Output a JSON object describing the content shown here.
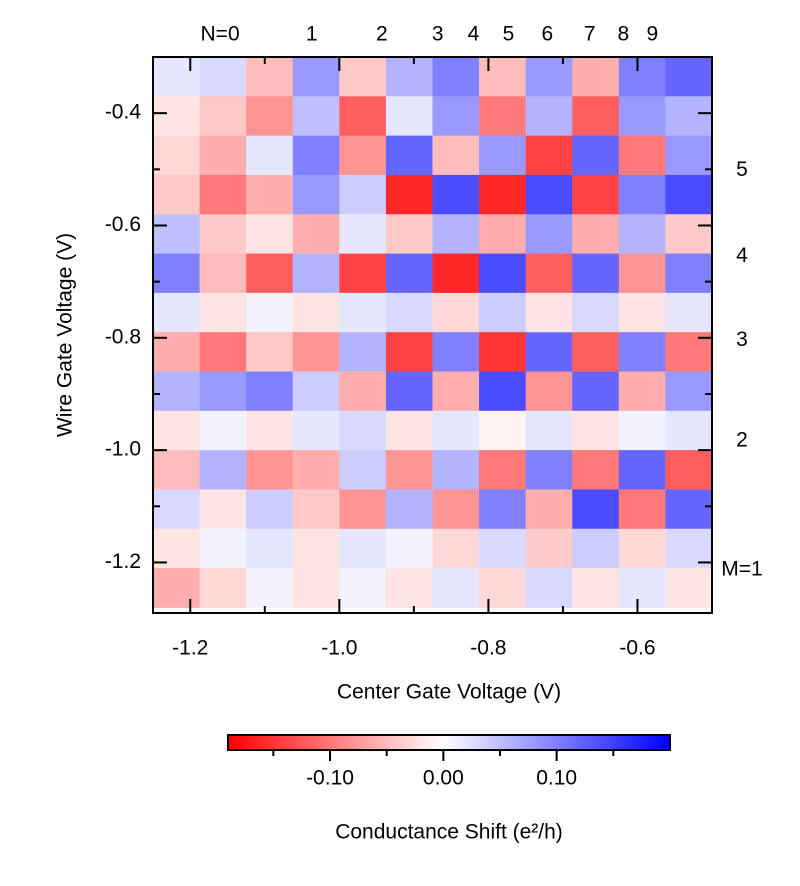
{
  "chart_data": {
    "type": "heatmap",
    "xlabel": "Center Gate Voltage (V)",
    "ylabel": "Wire Gate Voltage (V)",
    "colorbar_label": "Conductance Shift (e²/h)",
    "xlim": [
      -1.25,
      -0.5
    ],
    "ylim": [
      -1.29,
      -0.3
    ],
    "xticks": [
      -1.2,
      {
        "value": -1.0,
        "label": "-1.0"
      },
      -0.8,
      -0.6
    ],
    "xminorticks": [
      -1.1,
      -0.9,
      -0.7
    ],
    "yticks": [
      -0.4,
      -0.6,
      -0.8,
      {
        "value": -1.0,
        "label": "-1.0"
      },
      -1.2
    ],
    "yminorticks": [
      -0.5,
      -0.7,
      -0.9,
      -1.1
    ],
    "clim": [
      -0.19,
      0.2
    ],
    "cticks": [
      {
        "value": -0.1,
        "label": "-0.10"
      },
      {
        "value": 0,
        "label": "0.00"
      },
      {
        "value": 0.1,
        "label": "0.10"
      }
    ],
    "cminorticks": [
      -0.15,
      -0.05,
      0.05,
      0.15
    ],
    "colormap": [
      "#ff0000",
      "#ffffff",
      "#0000ff"
    ],
    "top_annotations": [
      {
        "label": "N=0",
        "x": -1.16
      },
      {
        "label": "1",
        "x": -1.037
      },
      {
        "label": "2",
        "x": -0.943
      },
      {
        "label": "3",
        "x": -0.868
      },
      {
        "label": "4",
        "x": -0.82
      },
      {
        "label": "5",
        "x": -0.773
      },
      {
        "label": "6",
        "x": -0.721
      },
      {
        "label": "7",
        "x": -0.664
      },
      {
        "label": "8",
        "x": -0.619
      },
      {
        "label": "9",
        "x": -0.58
      }
    ],
    "right_annotations": [
      {
        "label": "5",
        "y": -0.502
      },
      {
        "label": "4",
        "y": -0.655
      },
      {
        "label": "3",
        "y": -0.805
      },
      {
        "label": "2",
        "y": -0.984
      },
      {
        "label": "M=1",
        "y": -1.213
      }
    ],
    "x_edges": [
      -1.25,
      -1.1875,
      -1.125,
      -1.0625,
      -1.0,
      -0.9375,
      -0.875,
      -0.8125,
      -0.75,
      -0.6875,
      -0.625,
      -0.5625,
      -0.5
    ],
    "y_edges": [
      -0.3,
      -0.37,
      -0.44,
      -0.51,
      -0.58,
      -0.65,
      -0.72,
      -0.79,
      -0.86,
      -0.93,
      -1.0,
      -1.07,
      -1.14,
      -1.21,
      -1.28
    ],
    "z": [
      [
        0.02,
        0.03,
        -0.05,
        0.08,
        -0.04,
        0.06,
        0.1,
        -0.05,
        0.08,
        -0.06,
        0.1,
        0.12
      ],
      [
        -0.02,
        -0.04,
        -0.08,
        0.05,
        -0.12,
        0.02,
        0.08,
        -0.1,
        0.06,
        -0.12,
        0.08,
        0.06
      ],
      [
        -0.03,
        -0.06,
        0.02,
        0.1,
        -0.08,
        0.12,
        -0.05,
        0.08,
        -0.14,
        0.12,
        -0.1,
        0.08
      ],
      [
        -0.04,
        -0.1,
        -0.06,
        0.08,
        0.04,
        -0.16,
        0.14,
        -0.16,
        0.14,
        -0.14,
        0.1,
        0.14
      ],
      [
        0.05,
        -0.04,
        -0.02,
        -0.06,
        0.02,
        -0.04,
        0.06,
        -0.06,
        0.08,
        -0.06,
        0.06,
        -0.04
      ],
      [
        0.1,
        -0.05,
        -0.12,
        0.06,
        -0.14,
        0.12,
        -0.16,
        0.14,
        -0.12,
        0.12,
        -0.08,
        0.1
      ],
      [
        0.02,
        -0.02,
        0.01,
        -0.02,
        0.02,
        0.03,
        -0.03,
        0.04,
        -0.02,
        0.03,
        -0.02,
        0.02
      ],
      [
        -0.06,
        -0.1,
        -0.04,
        -0.08,
        0.06,
        -0.14,
        0.1,
        -0.15,
        0.12,
        -0.12,
        0.1,
        -0.1
      ],
      [
        0.06,
        0.08,
        0.1,
        0.04,
        -0.06,
        0.12,
        -0.06,
        0.14,
        -0.08,
        0.12,
        -0.06,
        0.08
      ],
      [
        -0.02,
        0.01,
        -0.02,
        0.02,
        0.03,
        -0.02,
        0.02,
        -0.01,
        0.02,
        -0.02,
        0.01,
        0.02
      ],
      [
        -0.05,
        0.06,
        -0.08,
        -0.06,
        0.04,
        -0.08,
        0.06,
        -0.1,
        0.1,
        -0.1,
        0.12,
        -0.12
      ],
      [
        0.03,
        -0.02,
        0.04,
        -0.04,
        -0.08,
        0.06,
        -0.08,
        0.1,
        -0.06,
        0.14,
        -0.1,
        0.12
      ],
      [
        -0.02,
        0.01,
        0.02,
        -0.02,
        0.02,
        0.01,
        -0.03,
        0.03,
        -0.04,
        0.04,
        -0.03,
        0.03
      ],
      [
        -0.06,
        -0.03,
        0.01,
        -0.02,
        0.01,
        -0.02,
        0.02,
        -0.03,
        0.03,
        -0.02,
        0.02,
        -0.02
      ]
    ]
  }
}
